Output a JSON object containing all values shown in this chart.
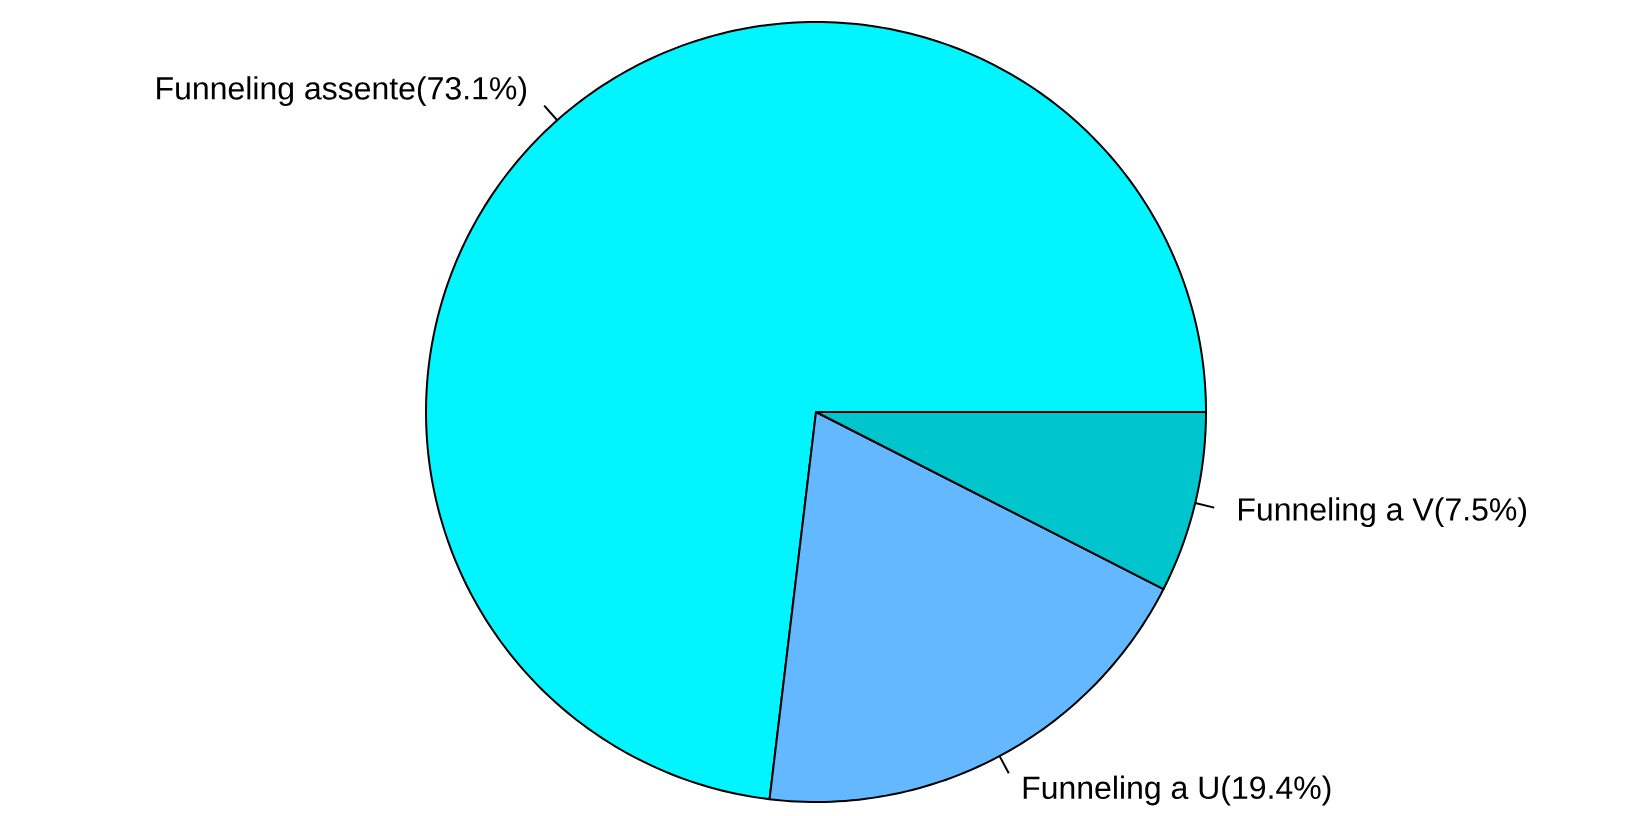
{
  "chart_data": {
    "type": "pie",
    "categories": [
      "Funneling assente(73.1%)",
      "Funneling a U(19.4%)",
      "Funneling a V(7.5%)"
    ],
    "values": [
      73.1,
      19.4,
      7.5
    ],
    "colors": [
      "#00f5ff",
      "#63b8ff",
      "#00c5cd"
    ]
  }
}
